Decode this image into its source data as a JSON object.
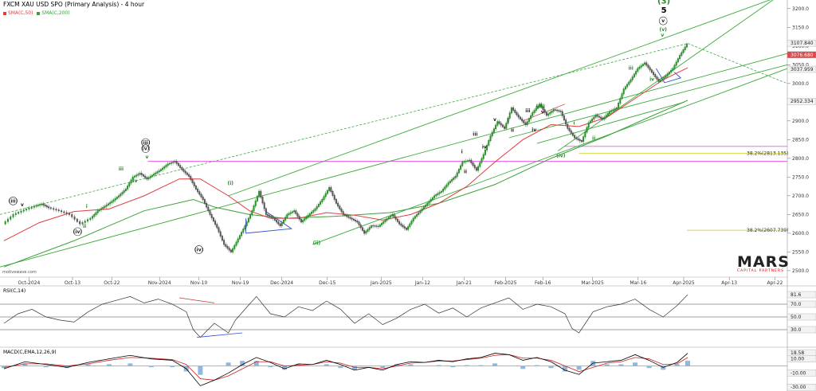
{
  "header": {
    "title": "FXCM XAU USD SPO (Primary Analysis) - 4 hour",
    "sma50": "SMA(C,50)",
    "sma200": "SMA(C,200)"
  },
  "colors": {
    "price_up": "#2e8b2e",
    "price_down": "#555555",
    "sma50": "#e03c3c",
    "sma200": "#3ca03c",
    "channel": "#3caa3c",
    "magenta": "#ee55ee",
    "fib": "#c8c800",
    "tri": "#3050d0",
    "rsi": "#333333",
    "macd": "#000000",
    "signal": "#cc2222",
    "hist": "#8fb8dc",
    "red_label": "#cc3333",
    "dark_label": "#444444"
  },
  "rsi": {
    "label": "RSI(C,14)",
    "v1": "81.6",
    "v2": "70.0",
    "v3": "50.0",
    "v4": "30.0"
  },
  "macd": {
    "label": "MACD(C,EMA,12,26,9)",
    "v1": "18.58",
    "v2": "10.00",
    "v3": "-10.00",
    "v4": "-30.00"
  },
  "watermark": "motivewave.com",
  "logo": {
    "main": "MARS",
    "sub": "CAPITAL PARTNERS"
  },
  "fib_labels": [
    "38.2%(2813.135)",
    "38.2%(2607.739)"
  ],
  "chart_data": {
    "type": "line",
    "title": "FXCM XAU USD SPO (Primary Analysis) - 4 hour",
    "x_ticks": [
      "Oct-2024",
      "Oct-13",
      "Oct-22",
      "Nov-2024",
      "Nov-10",
      "Nov-19",
      "Dec-2024",
      "Dec-15",
      "Jan-2025",
      "Jan-12",
      "Jan-21",
      "Feb-2025",
      "Feb-16",
      "Mar-2025",
      "Mar-16",
      "Apr-2025",
      "Apr-13",
      "Apr-22"
    ],
    "y_ticks": [
      2500,
      2550,
      2600,
      2650,
      2700,
      2750,
      2800,
      2850,
      2900,
      2950,
      3000,
      3050,
      3100,
      3150,
      3200
    ],
    "ylim": [
      2487,
      3223
    ],
    "price_labels": [
      {
        "text": "3107.840",
        "v": 3107.84
      },
      {
        "text": "3076.680",
        "v": 3076.68
      },
      {
        "text": "3037.959",
        "v": 3037.959
      },
      {
        "text": "2952.334",
        "v": 2952.334
      }
    ],
    "x_domain": [
      0,
      100
    ],
    "price": [
      [
        0,
        2625
      ],
      [
        1.5,
        2650
      ],
      [
        3,
        2662
      ],
      [
        4.5,
        2672
      ],
      [
        5.5,
        2678
      ],
      [
        6.5,
        2668
      ],
      [
        8,
        2660
      ],
      [
        9.5,
        2650
      ],
      [
        11,
        2625
      ],
      [
        12.5,
        2640
      ],
      [
        13.5,
        2660
      ],
      [
        14.5,
        2672
      ],
      [
        15.5,
        2685
      ],
      [
        16.5,
        2700
      ],
      [
        17.5,
        2718
      ],
      [
        18.5,
        2750
      ],
      [
        19.5,
        2760
      ],
      [
        20.5,
        2745
      ],
      [
        21.5,
        2758
      ],
      [
        22.5,
        2770
      ],
      [
        23.5,
        2785
      ],
      [
        24.5,
        2792
      ],
      [
        25.5,
        2770
      ],
      [
        26.5,
        2752
      ],
      [
        27.5,
        2718
      ],
      [
        28.5,
        2690
      ],
      [
        29.5,
        2650
      ],
      [
        30.5,
        2615
      ],
      [
        31.5,
        2570
      ],
      [
        32.5,
        2550
      ],
      [
        33.5,
        2585
      ],
      [
        34.5,
        2620
      ],
      [
        35.5,
        2660
      ],
      [
        36.5,
        2712
      ],
      [
        37.5,
        2650
      ],
      [
        38.5,
        2640
      ],
      [
        39.5,
        2620
      ],
      [
        40.5,
        2650
      ],
      [
        41.5,
        2660
      ],
      [
        42.5,
        2630
      ],
      [
        43.5,
        2648
      ],
      [
        44.5,
        2665
      ],
      [
        45.5,
        2690
      ],
      [
        46.5,
        2722
      ],
      [
        47.5,
        2680
      ],
      [
        48.5,
        2650
      ],
      [
        49.5,
        2640
      ],
      [
        50.5,
        2630
      ],
      [
        51.5,
        2600
      ],
      [
        52.5,
        2620
      ],
      [
        53.5,
        2618
      ],
      [
        54.5,
        2635
      ],
      [
        55.5,
        2650
      ],
      [
        56.5,
        2625
      ],
      [
        57.5,
        2610
      ],
      [
        58.5,
        2640
      ],
      [
        59.5,
        2660
      ],
      [
        60.5,
        2680
      ],
      [
        61.5,
        2700
      ],
      [
        62.5,
        2712
      ],
      [
        63.5,
        2735
      ],
      [
        64.5,
        2752
      ],
      [
        65.5,
        2790
      ],
      [
        66.5,
        2795
      ],
      [
        67.5,
        2768
      ],
      [
        68.5,
        2810
      ],
      [
        69.5,
        2860
      ],
      [
        70.5,
        2898
      ],
      [
        71.5,
        2880
      ],
      [
        72.5,
        2935
      ],
      [
        73.5,
        2910
      ],
      [
        74.5,
        2890
      ],
      [
        75.5,
        2922
      ],
      [
        76.5,
        2945
      ],
      [
        77.5,
        2915
      ],
      [
        78.5,
        2930
      ],
      [
        79.5,
        2925
      ],
      [
        80.5,
        2880
      ],
      [
        81.5,
        2855
      ],
      [
        82.5,
        2845
      ],
      [
        83.5,
        2895
      ],
      [
        84.5,
        2915
      ],
      [
        85.5,
        2905
      ],
      [
        86.5,
        2925
      ],
      [
        87.5,
        2935
      ],
      [
        88.5,
        2985
      ],
      [
        89.5,
        3010
      ],
      [
        90.5,
        3040
      ],
      [
        91.5,
        3055
      ],
      [
        92.5,
        3030
      ],
      [
        93.5,
        3005
      ],
      [
        94.5,
        3020
      ],
      [
        95.5,
        3040
      ],
      [
        96.5,
        3075
      ],
      [
        97.5,
        3105
      ]
    ],
    "sma50": [
      [
        0,
        2580
      ],
      [
        5,
        2628
      ],
      [
        10,
        2658
      ],
      [
        15,
        2665
      ],
      [
        20,
        2700
      ],
      [
        25,
        2745
      ],
      [
        28,
        2745
      ],
      [
        32,
        2700
      ],
      [
        35,
        2660
      ],
      [
        38,
        2640
      ],
      [
        42,
        2640
      ],
      [
        46,
        2655
      ],
      [
        50,
        2648
      ],
      [
        54,
        2635
      ],
      [
        58,
        2650
      ],
      [
        62,
        2680
      ],
      [
        66,
        2725
      ],
      [
        70,
        2790
      ],
      [
        74,
        2850
      ],
      [
        78,
        2890
      ],
      [
        82,
        2885
      ],
      [
        86,
        2910
      ],
      [
        90,
        2960
      ],
      [
        94,
        3010
      ],
      [
        97.5,
        3042
      ]
    ],
    "sma200": [
      [
        0,
        2510
      ],
      [
        10,
        2580
      ],
      [
        20,
        2660
      ],
      [
        27,
        2690
      ],
      [
        30,
        2670
      ],
      [
        35,
        2650
      ],
      [
        40,
        2640
      ],
      [
        47,
        2645
      ],
      [
        55,
        2655
      ],
      [
        62,
        2680
      ],
      [
        70,
        2730
      ],
      [
        78,
        2800
      ],
      [
        86,
        2860
      ],
      [
        92,
        2910
      ],
      [
        97.5,
        2955
      ]
    ],
    "rsi": [
      [
        0,
        40
      ],
      [
        2,
        55
      ],
      [
        4,
        62
      ],
      [
        6,
        50
      ],
      [
        8,
        45
      ],
      [
        10,
        42
      ],
      [
        12,
        58
      ],
      [
        14,
        70
      ],
      [
        16,
        76
      ],
      [
        18,
        82
      ],
      [
        20,
        72
      ],
      [
        22,
        78
      ],
      [
        24,
        70
      ],
      [
        26,
        58
      ],
      [
        27,
        30
      ],
      [
        28,
        18
      ],
      [
        30,
        40
      ],
      [
        32,
        25
      ],
      [
        33,
        45
      ],
      [
        35,
        70
      ],
      [
        36,
        82
      ],
      [
        38,
        55
      ],
      [
        40,
        50
      ],
      [
        42,
        66
      ],
      [
        44,
        60
      ],
      [
        46,
        75
      ],
      [
        48,
        62
      ],
      [
        50,
        40
      ],
      [
        52,
        55
      ],
      [
        54,
        38
      ],
      [
        56,
        48
      ],
      [
        58,
        62
      ],
      [
        60,
        70
      ],
      [
        62,
        56
      ],
      [
        64,
        64
      ],
      [
        66,
        50
      ],
      [
        68,
        64
      ],
      [
        70,
        72
      ],
      [
        72,
        80
      ],
      [
        74,
        62
      ],
      [
        76,
        70
      ],
      [
        78,
        66
      ],
      [
        80,
        55
      ],
      [
        81,
        32
      ],
      [
        82,
        25
      ],
      [
        84,
        58
      ],
      [
        86,
        66
      ],
      [
        88,
        70
      ],
      [
        90,
        78
      ],
      [
        92,
        62
      ],
      [
        94,
        50
      ],
      [
        96,
        68
      ],
      [
        97.5,
        85
      ]
    ],
    "macd": [
      [
        0,
        -4
      ],
      [
        3,
        6
      ],
      [
        6,
        2
      ],
      [
        9,
        -2
      ],
      [
        12,
        5
      ],
      [
        15,
        10
      ],
      [
        18,
        15
      ],
      [
        21,
        10
      ],
      [
        24,
        8
      ],
      [
        26,
        -4
      ],
      [
        28,
        -28
      ],
      [
        30,
        -20
      ],
      [
        32,
        -10
      ],
      [
        34,
        2
      ],
      [
        36,
        12
      ],
      [
        38,
        5
      ],
      [
        40,
        -4
      ],
      [
        42,
        3
      ],
      [
        44,
        2
      ],
      [
        46,
        8
      ],
      [
        48,
        2
      ],
      [
        50,
        -6
      ],
      [
        52,
        -2
      ],
      [
        54,
        -6
      ],
      [
        56,
        2
      ],
      [
        58,
        6
      ],
      [
        60,
        5
      ],
      [
        62,
        8
      ],
      [
        64,
        6
      ],
      [
        66,
        10
      ],
      [
        68,
        12
      ],
      [
        70,
        18
      ],
      [
        72,
        16
      ],
      [
        74,
        8
      ],
      [
        76,
        12
      ],
      [
        78,
        6
      ],
      [
        80,
        -6
      ],
      [
        82,
        -12
      ],
      [
        84,
        4
      ],
      [
        86,
        6
      ],
      [
        88,
        8
      ],
      [
        90,
        16
      ],
      [
        92,
        8
      ],
      [
        94,
        -2
      ],
      [
        96,
        5
      ],
      [
        97.5,
        18
      ]
    ],
    "signal": [
      [
        0,
        -2
      ],
      [
        3,
        3
      ],
      [
        6,
        3
      ],
      [
        9,
        0
      ],
      [
        12,
        3
      ],
      [
        15,
        8
      ],
      [
        18,
        12
      ],
      [
        21,
        11
      ],
      [
        24,
        9
      ],
      [
        26,
        2
      ],
      [
        28,
        -18
      ],
      [
        30,
        -20
      ],
      [
        32,
        -14
      ],
      [
        34,
        -4
      ],
      [
        36,
        6
      ],
      [
        38,
        6
      ],
      [
        40,
        0
      ],
      [
        42,
        1
      ],
      [
        44,
        2
      ],
      [
        46,
        6
      ],
      [
        48,
        4
      ],
      [
        50,
        -2
      ],
      [
        52,
        -2
      ],
      [
        54,
        -4
      ],
      [
        56,
        0
      ],
      [
        58,
        4
      ],
      [
        60,
        5
      ],
      [
        62,
        7
      ],
      [
        64,
        7
      ],
      [
        66,
        9
      ],
      [
        68,
        11
      ],
      [
        70,
        15
      ],
      [
        72,
        16
      ],
      [
        74,
        11
      ],
      [
        76,
        11
      ],
      [
        78,
        8
      ],
      [
        80,
        0
      ],
      [
        82,
        -8
      ],
      [
        84,
        -2
      ],
      [
        86,
        4
      ],
      [
        88,
        6
      ],
      [
        90,
        12
      ],
      [
        92,
        10
      ],
      [
        94,
        2
      ],
      [
        96,
        3
      ],
      [
        97.5,
        12
      ]
    ],
    "wave_labels": [
      {
        "t": "(iii)",
        "x": 1.3,
        "v": 2682,
        "c": "dark",
        "cir": true
      },
      {
        "t": "v",
        "x": 2.6,
        "v": 2672,
        "c": "dark"
      },
      {
        "t": "i",
        "x": 11.8,
        "v": 2668,
        "c": "green"
      },
      {
        "t": "ii",
        "x": 11.5,
        "v": 2615,
        "c": "green"
      },
      {
        "t": "(iv)",
        "x": 10.5,
        "v": 2600,
        "c": "dark",
        "cir": true
      },
      {
        "t": "iii",
        "x": 16.7,
        "v": 2768,
        "c": "green"
      },
      {
        "t": "iv",
        "x": 18.7,
        "v": 2736,
        "c": "green"
      },
      {
        "t": "v",
        "x": 20.4,
        "v": 2800,
        "c": "green"
      },
      {
        "t": "(iii)",
        "x": 20.2,
        "v": 2838,
        "c": "dark",
        "cir": true
      },
      {
        "t": "(v)",
        "x": 20.2,
        "v": 2822,
        "c": "dark",
        "cir": true
      },
      {
        "t": "(iv)",
        "x": 27.8,
        "v": 2552,
        "c": "dark",
        "cir": true
      },
      {
        "t": "(i)",
        "x": 32.3,
        "v": 2730,
        "c": "green"
      },
      {
        "t": "(ii)",
        "x": 44.6,
        "v": 2570,
        "c": "green"
      },
      {
        "t": "i",
        "x": 65.3,
        "v": 2814,
        "c": "dark"
      },
      {
        "t": "ii",
        "x": 65.8,
        "v": 2760,
        "c": "dark"
      },
      {
        "t": "iii",
        "x": 67.2,
        "v": 2860,
        "c": "dark"
      },
      {
        "t": "iv",
        "x": 68.5,
        "v": 2826,
        "c": "dark"
      },
      {
        "t": "v",
        "x": 70.0,
        "v": 2900,
        "c": "dark"
      },
      {
        "t": "i",
        "x": 71.9,
        "v": 2897,
        "c": "dark"
      },
      {
        "t": "ii",
        "x": 72.5,
        "v": 2871,
        "c": "dark"
      },
      {
        "t": "iii",
        "x": 74.7,
        "v": 2923,
        "c": "dark"
      },
      {
        "t": "iv",
        "x": 75.6,
        "v": 2872,
        "c": "dark"
      },
      {
        "t": "v",
        "x": 76.8,
        "v": 2920,
        "c": "dark"
      },
      {
        "t": "(iii)",
        "x": 76.5,
        "v": 2935,
        "c": "green"
      },
      {
        "t": "(iv)",
        "x": 79.4,
        "v": 2803,
        "c": "green"
      },
      {
        "t": "i",
        "x": 81.3,
        "v": 2890,
        "c": "green"
      },
      {
        "t": "ii",
        "x": 84.1,
        "v": 2850,
        "c": "green"
      },
      {
        "t": "iii",
        "x": 89.4,
        "v": 3037,
        "c": "green"
      },
      {
        "t": "iv",
        "x": 92.4,
        "v": 3007,
        "c": "green"
      },
      {
        "t": "v",
        "x": 93.9,
        "v": 3125,
        "c": "green"
      },
      {
        "t": "(v)",
        "x": 94.0,
        "v": 3140,
        "c": "green"
      },
      {
        "t": "v",
        "x": 94.0,
        "v": 3163,
        "c": "dark",
        "cir": true
      },
      {
        "t": "5",
        "x": 94.1,
        "v": 3189,
        "c": "black",
        "big": true
      },
      {
        "t": "(3)",
        "x": 94.1,
        "v": 3213,
        "c": "green",
        "big": true
      }
    ]
  }
}
